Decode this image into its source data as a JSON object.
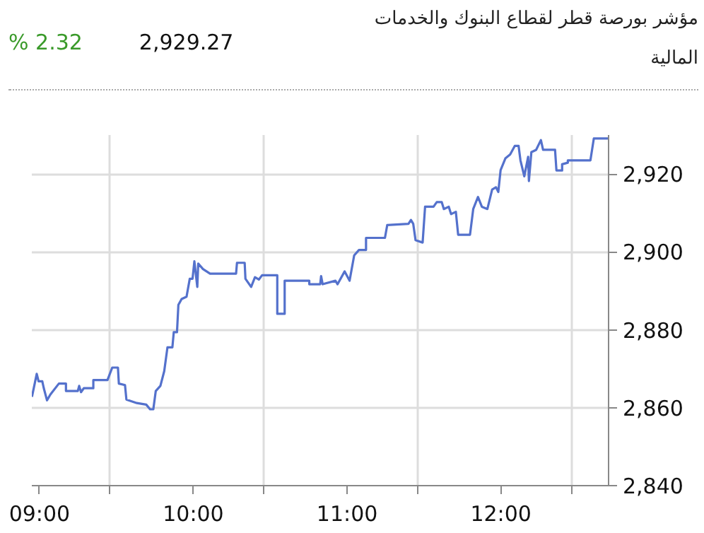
{
  "chart_data": {
    "type": "line",
    "title": "مؤشر بورصة قطر لقطاع البنوك والخدمات المالية",
    "annotations": [
      "2,929.27",
      "% 2.32"
    ],
    "xlim": [
      8.95,
      12.7
    ],
    "ylim": [
      2840,
      2930
    ],
    "xticks": [
      {
        "value": 9,
        "label": "09:00"
      },
      {
        "value": 9.46,
        "label": null
      },
      {
        "value": 10,
        "label": "10:00"
      },
      {
        "value": 10.46,
        "label": null
      },
      {
        "value": 11,
        "label": "11:00"
      },
      {
        "value": 11.46,
        "label": null
      },
      {
        "value": 12,
        "label": "12:00"
      },
      {
        "value": 12.46,
        "label": null
      }
    ],
    "yticks": [
      {
        "value": 2840,
        "label": "2,840"
      },
      {
        "value": 2860,
        "label": "2,860"
      },
      {
        "value": 2880,
        "label": "2,880"
      },
      {
        "value": 2900,
        "label": "2,900"
      },
      {
        "value": 2920,
        "label": "2,920"
      }
    ],
    "grid": true,
    "marker": "none",
    "line_style": "solid",
    "series": [
      {
        "color": "#5471cc",
        "x": [
          8.951,
          8.982,
          8.994,
          9.018,
          9.028,
          9.049,
          9.071,
          9.126,
          9.172,
          9.172,
          9.249,
          9.258,
          9.27,
          9.288,
          9.35,
          9.35,
          9.442,
          9.473,
          9.51,
          9.516,
          9.556,
          9.565,
          9.633,
          9.694,
          9.719,
          9.74,
          9.756,
          9.786,
          9.811,
          9.832,
          9.864,
          9.873,
          9.894,
          9.903,
          9.924,
          9.956,
          9.977,
          9.995,
          10.007,
          10.026,
          10.032,
          10.063,
          10.109,
          10.278,
          10.284,
          10.334,
          10.339,
          10.376,
          10.401,
          10.426,
          10.447,
          10.546,
          10.546,
          10.594,
          10.594,
          10.754,
          10.754,
          10.825,
          10.831,
          10.841,
          10.924,
          10.938,
          10.984,
          11.016,
          11.046,
          11.077,
          11.123,
          11.123,
          11.246,
          11.261,
          11.399,
          11.415,
          11.43,
          11.445,
          11.491,
          11.507,
          11.562,
          11.583,
          11.615,
          11.629,
          11.661,
          11.676,
          11.707,
          11.722,
          11.799,
          11.82,
          11.851,
          11.876,
          11.912,
          11.943,
          11.968,
          11.983,
          11.998,
          12.029,
          12.06,
          12.09,
          12.115,
          12.127,
          12.152,
          12.177,
          12.182,
          12.198,
          12.229,
          12.26,
          12.274,
          12.352,
          12.361,
          12.398,
          12.398,
          12.435,
          12.435,
          12.582,
          12.604,
          12.699
        ],
        "values": [
          2862.8,
          2868.7,
          2866.8,
          2866.8,
          2865,
          2861.9,
          2863.4,
          2866.2,
          2866.2,
          2864.3,
          2864.3,
          2865.6,
          2864,
          2865,
          2865,
          2867.1,
          2867.1,
          2870.3,
          2870.3,
          2866.2,
          2865.8,
          2862.1,
          2861.2,
          2860.8,
          2859.6,
          2859.6,
          2864.3,
          2865.6,
          2869.4,
          2875.5,
          2875.5,
          2879.4,
          2879.4,
          2886.4,
          2887.9,
          2888.5,
          2893.1,
          2893.1,
          2897.6,
          2891,
          2897,
          2895.6,
          2894.4,
          2894.4,
          2897.2,
          2897.2,
          2893.1,
          2891,
          2893.5,
          2892.9,
          2894,
          2894,
          2884.1,
          2884.1,
          2892.6,
          2892.6,
          2891.7,
          2891.7,
          2893.8,
          2891.7,
          2892.6,
          2891.7,
          2895,
          2892.6,
          2899.1,
          2900.5,
          2900.5,
          2903.6,
          2903.6,
          2906.9,
          2907.2,
          2908.2,
          2907.2,
          2903,
          2902.4,
          2911.6,
          2911.6,
          2912.8,
          2912.8,
          2911,
          2911.6,
          2909.7,
          2910.3,
          2904.4,
          2904.4,
          2911,
          2914.1,
          2911.6,
          2911,
          2916,
          2916.6,
          2915.4,
          2921,
          2924,
          2925,
          2927.2,
          2927.2,
          2923.5,
          2919.4,
          2924.4,
          2918.2,
          2925.6,
          2926.2,
          2928.7,
          2926.2,
          2926.2,
          2920.9,
          2920.9,
          2922.5,
          2922.9,
          2923.5,
          2923.5,
          2929.1,
          2929.1
        ]
      }
    ]
  }
}
